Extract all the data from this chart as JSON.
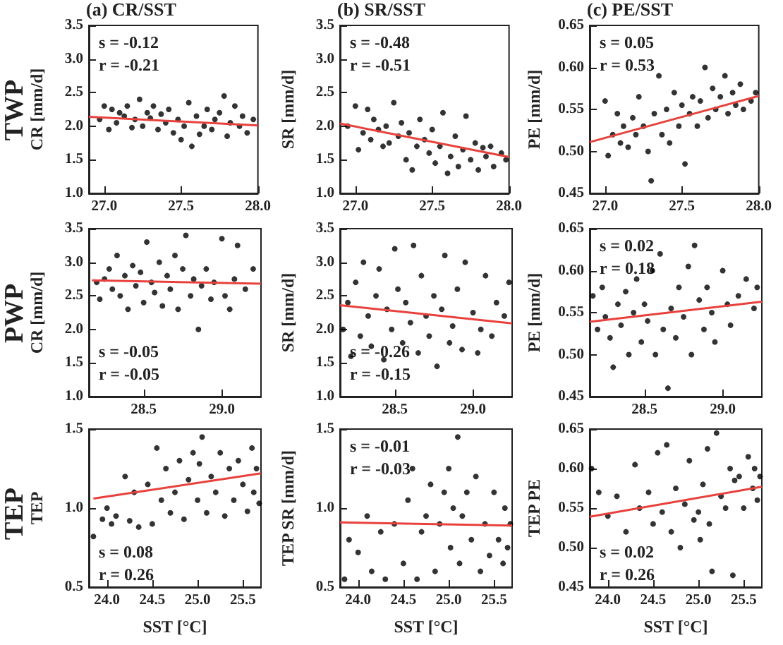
{
  "chart_data": [
    {
      "type": "scatter",
      "title": "(a) CR/SST",
      "ylabel": "CR [mm/d]",
      "annotations": [
        "TWP",
        "s = -0.12",
        "r = -0.21"
      ],
      "xlim": [
        26.9,
        28.0
      ],
      "xticks": [
        {
          "value": 27,
          "label": "27.0"
        },
        {
          "value": 27.5,
          "label": "27.5"
        },
        {
          "value": 28,
          "label": "28.0"
        }
      ],
      "ylim": [
        1.0,
        3.5
      ],
      "yticks": [
        {
          "value": 1,
          "label": "1.0"
        },
        {
          "value": 1.5,
          "label": "1.5"
        },
        {
          "value": 2,
          "label": "2.0"
        },
        {
          "value": 2.5,
          "label": "2.5"
        },
        {
          "value": 3,
          "label": "3.0"
        },
        {
          "value": 3.5,
          "label": "3.5"
        }
      ],
      "series": [
        {
          "type": "scatter",
          "marker": "circle",
          "color": "#000000",
          "x": [
            26.97,
            27.0,
            27.03,
            27.05,
            27.08,
            27.1,
            27.13,
            27.15,
            27.18,
            27.2,
            27.23,
            27.25,
            27.28,
            27.3,
            27.32,
            27.35,
            27.37,
            27.4,
            27.42,
            27.45,
            27.48,
            27.5,
            27.52,
            27.55,
            27.57,
            27.6,
            27.62,
            27.65,
            27.67,
            27.7,
            27.72,
            27.75,
            27.78,
            27.8,
            27.82,
            27.85,
            27.88,
            27.9,
            27.93,
            27.97
          ],
          "values": [
            2.1,
            2.3,
            1.95,
            2.25,
            2.05,
            2.2,
            2.15,
            2.3,
            1.98,
            2.1,
            2.4,
            2.0,
            2.2,
            2.12,
            2.3,
            1.95,
            2.18,
            2.05,
            2.25,
            1.9,
            2.1,
            1.8,
            2.0,
            2.35,
            1.7,
            2.15,
            1.88,
            2.0,
            2.25,
            1.95,
            2.1,
            2.2,
            2.45,
            1.85,
            2.05,
            2.3,
            2.0,
            2.15,
            1.9,
            2.1
          ]
        },
        {
          "type": "line",
          "marker": "none",
          "color": "#e8413c",
          "x": [
            26.9,
            28.0
          ],
          "values": [
            2.14,
            2.01
          ]
        }
      ]
    },
    {
      "type": "scatter",
      "title": "(b) SR/SST",
      "ylabel": "SR [mm/d]",
      "annotations": [
        "s = -0.48",
        "r = -0.51"
      ],
      "xlim": [
        26.9,
        28.0
      ],
      "xticks": [
        {
          "value": 27,
          "label": "27.0"
        },
        {
          "value": 27.5,
          "label": "27.5"
        },
        {
          "value": 28,
          "label": "28.0"
        }
      ],
      "ylim": [
        1.0,
        3.5
      ],
      "yticks": [
        {
          "value": 1,
          "label": "1.0"
        },
        {
          "value": 1.5,
          "label": "1.5"
        },
        {
          "value": 2,
          "label": "2.0"
        },
        {
          "value": 2.5,
          "label": "2.5"
        },
        {
          "value": 3,
          "label": "3.0"
        },
        {
          "value": 3.5,
          "label": "3.5"
        }
      ],
      "series": [
        {
          "type": "scatter",
          "marker": "circle",
          "color": "#000000",
          "x": [
            26.95,
            27.0,
            27.02,
            27.05,
            27.08,
            27.1,
            27.12,
            27.15,
            27.18,
            27.2,
            27.22,
            27.25,
            27.28,
            27.3,
            27.33,
            27.35,
            27.37,
            27.4,
            27.42,
            27.45,
            27.48,
            27.5,
            27.52,
            27.55,
            27.57,
            27.6,
            27.62,
            27.65,
            27.67,
            27.7,
            27.72,
            27.75,
            27.78,
            27.8,
            27.83,
            27.85,
            27.88,
            27.9,
            27.95,
            27.98
          ],
          "values": [
            2.0,
            2.3,
            1.65,
            1.9,
            2.25,
            1.8,
            2.1,
            1.95,
            1.7,
            2.0,
            1.75,
            2.35,
            1.85,
            2.05,
            1.5,
            1.9,
            1.35,
            1.7,
            2.1,
            1.8,
            1.6,
            1.95,
            1.45,
            1.7,
            2.2,
            1.3,
            1.55,
            1.85,
            1.4,
            1.65,
            2.15,
            1.5,
            1.75,
            1.35,
            1.68,
            1.55,
            1.7,
            1.4,
            1.6,
            1.5
          ]
        },
        {
          "type": "line",
          "marker": "none",
          "color": "#e8413c",
          "x": [
            26.9,
            28.0
          ],
          "values": [
            2.04,
            1.54
          ]
        }
      ]
    },
    {
      "type": "scatter",
      "title": "(c) PE/SST",
      "ylabel": "PE [mm/d]",
      "annotations": [
        "s = 0.05",
        "r = 0.53"
      ],
      "xlim": [
        26.9,
        28.0
      ],
      "xticks": [
        {
          "value": 27,
          "label": "27.0"
        },
        {
          "value": 27.5,
          "label": "27.5"
        },
        {
          "value": 28,
          "label": "28.0"
        }
      ],
      "ylim": [
        0.45,
        0.65
      ],
      "yticks": [
        {
          "value": 0.45,
          "label": "0.45"
        },
        {
          "value": 0.5,
          "label": "0.50"
        },
        {
          "value": 0.55,
          "label": "0.55"
        },
        {
          "value": 0.6,
          "label": "0.60"
        },
        {
          "value": 0.65,
          "label": "0.65"
        }
      ],
      "series": [
        {
          "type": "scatter",
          "marker": "circle",
          "color": "#000000",
          "x": [
            27.0,
            27.02,
            27.05,
            27.08,
            27.1,
            27.12,
            27.15,
            27.18,
            27.2,
            27.22,
            27.25,
            27.28,
            27.3,
            27.32,
            27.35,
            27.37,
            27.4,
            27.42,
            27.45,
            27.48,
            27.5,
            27.52,
            27.55,
            27.57,
            27.6,
            27.62,
            27.65,
            27.67,
            27.7,
            27.72,
            27.75,
            27.78,
            27.8,
            27.83,
            27.85,
            27.88,
            27.9,
            27.95,
            27.98
          ],
          "values": [
            0.56,
            0.495,
            0.52,
            0.545,
            0.51,
            0.53,
            0.505,
            0.54,
            0.52,
            0.565,
            0.53,
            0.5,
            0.465,
            0.545,
            0.59,
            0.52,
            0.55,
            0.51,
            0.57,
            0.53,
            0.555,
            0.485,
            0.545,
            0.565,
            0.53,
            0.56,
            0.6,
            0.54,
            0.575,
            0.55,
            0.565,
            0.59,
            0.545,
            0.57,
            0.555,
            0.58,
            0.55,
            0.56,
            0.57
          ]
        },
        {
          "type": "line",
          "marker": "none",
          "color": "#e8413c",
          "x": [
            26.9,
            28.0
          ],
          "values": [
            0.511,
            0.566
          ]
        }
      ]
    },
    {
      "type": "scatter",
      "ylabel": "CR [mm/d]",
      "annotations": [
        "PWP",
        "s = -0.05",
        "r = -0.05"
      ],
      "xlim": [
        28.15,
        29.25
      ],
      "xticks": [
        {
          "value": 28.5,
          "label": "28.5"
        },
        {
          "value": 29,
          "label": "29.0"
        }
      ],
      "ylim": [
        1.0,
        3.5
      ],
      "yticks": [
        {
          "value": 1,
          "label": "1.0"
        },
        {
          "value": 1.5,
          "label": "1.5"
        },
        {
          "value": 2,
          "label": "2.0"
        },
        {
          "value": 2.5,
          "label": "2.5"
        },
        {
          "value": 3,
          "label": "3.0"
        },
        {
          "value": 3.5,
          "label": "3.5"
        }
      ],
      "series": [
        {
          "type": "scatter",
          "marker": "circle",
          "color": "#000000",
          "x": [
            28.2,
            28.22,
            28.25,
            28.28,
            28.3,
            28.33,
            28.35,
            28.38,
            28.4,
            28.43,
            28.45,
            28.48,
            28.5,
            28.52,
            28.55,
            28.57,
            28.6,
            28.62,
            28.65,
            28.67,
            28.7,
            28.72,
            28.75,
            28.77,
            28.8,
            28.82,
            28.85,
            28.87,
            28.9,
            28.93,
            28.95,
            29.0,
            29.02,
            29.05,
            29.08,
            29.1,
            29.15,
            29.2
          ],
          "values": [
            2.7,
            2.45,
            2.75,
            2.9,
            2.6,
            3.1,
            2.5,
            2.8,
            2.3,
            2.95,
            2.65,
            2.85,
            2.4,
            3.3,
            2.7,
            2.55,
            3.0,
            2.35,
            2.8,
            2.6,
            3.1,
            2.3,
            2.9,
            3.4,
            2.5,
            2.75,
            2.0,
            2.65,
            2.9,
            2.45,
            2.7,
            3.35,
            2.5,
            2.3,
            2.75,
            3.25,
            2.6,
            2.9
          ]
        },
        {
          "type": "line",
          "marker": "none",
          "color": "#e8413c",
          "x": [
            28.17,
            29.25
          ],
          "values": [
            2.73,
            2.68
          ]
        }
      ]
    },
    {
      "type": "scatter",
      "ylabel": "SR [mm/d]",
      "annotations": [
        "s = -0.26",
        "r = -0.15"
      ],
      "xlim": [
        28.15,
        29.25
      ],
      "xticks": [
        {
          "value": 28.5,
          "label": "28.5"
        },
        {
          "value": 29,
          "label": "29.0"
        }
      ],
      "ylim": [
        1.0,
        3.5
      ],
      "yticks": [
        {
          "value": 1,
          "label": "1.0"
        },
        {
          "value": 1.5,
          "label": "1.5"
        },
        {
          "value": 2,
          "label": "2.0"
        },
        {
          "value": 2.5,
          "label": "2.5"
        },
        {
          "value": 3,
          "label": "3.0"
        },
        {
          "value": 3.5,
          "label": "3.5"
        }
      ],
      "series": [
        {
          "type": "scatter",
          "marker": "circle",
          "color": "#000000",
          "x": [
            28.17,
            28.2,
            28.22,
            28.25,
            28.28,
            28.3,
            28.33,
            28.35,
            28.38,
            28.4,
            28.43,
            28.45,
            28.48,
            28.5,
            28.52,
            28.55,
            28.57,
            28.6,
            28.62,
            28.65,
            28.67,
            28.7,
            28.72,
            28.75,
            28.77,
            28.8,
            28.82,
            28.85,
            28.87,
            28.9,
            28.93,
            28.95,
            29.0,
            29.03,
            29.05,
            29.08,
            29.12,
            29.15,
            29.2,
            29.23
          ],
          "values": [
            2.0,
            2.4,
            1.6,
            2.7,
            1.9,
            3.0,
            2.2,
            1.75,
            2.5,
            2.9,
            1.55,
            2.3,
            2.0,
            3.2,
            2.6,
            1.8,
            2.4,
            2.1,
            3.25,
            1.65,
            2.8,
            2.2,
            1.9,
            2.5,
            1.45,
            2.3,
            3.1,
            1.8,
            2.05,
            2.6,
            1.7,
            3.0,
            2.25,
            1.65,
            2.0,
            2.8,
            1.9,
            2.4,
            2.2,
            2.7
          ]
        },
        {
          "type": "line",
          "marker": "none",
          "color": "#e8413c",
          "x": [
            28.15,
            29.25
          ],
          "values": [
            2.36,
            2.09
          ]
        }
      ]
    },
    {
      "type": "scatter",
      "ylabel": "PE [mm/d]",
      "annotations": [
        "s = 0.02",
        "r = 0.18"
      ],
      "xlim": [
        28.15,
        29.25
      ],
      "xticks": [
        {
          "value": 28.5,
          "label": "28.5"
        },
        {
          "value": 29,
          "label": "29.0"
        }
      ],
      "ylim": [
        0.45,
        0.65
      ],
      "yticks": [
        {
          "value": 0.45,
          "label": "0.45"
        },
        {
          "value": 0.5,
          "label": "0.50"
        },
        {
          "value": 0.55,
          "label": "0.55"
        },
        {
          "value": 0.6,
          "label": "0.60"
        },
        {
          "value": 0.65,
          "label": "0.65"
        }
      ],
      "series": [
        {
          "type": "scatter",
          "marker": "circle",
          "color": "#000000",
          "x": [
            28.17,
            28.2,
            28.23,
            28.25,
            28.28,
            28.3,
            28.33,
            28.35,
            28.38,
            28.4,
            28.43,
            28.45,
            28.48,
            28.5,
            28.52,
            28.55,
            28.57,
            28.6,
            28.62,
            28.65,
            28.67,
            28.7,
            28.72,
            28.75,
            28.78,
            28.8,
            28.82,
            28.85,
            28.88,
            28.9,
            28.93,
            28.95,
            29.0,
            29.03,
            29.05,
            29.1,
            29.15,
            29.2,
            29.22
          ],
          "values": [
            0.57,
            0.53,
            0.58,
            0.545,
            0.52,
            0.485,
            0.56,
            0.535,
            0.575,
            0.5,
            0.55,
            0.59,
            0.515,
            0.56,
            0.54,
            0.6,
            0.5,
            0.62,
            0.53,
            0.46,
            0.555,
            0.52,
            0.58,
            0.545,
            0.605,
            0.5,
            0.63,
            0.565,
            0.53,
            0.58,
            0.55,
            0.515,
            0.6,
            0.56,
            0.535,
            0.57,
            0.59,
            0.555,
            0.58
          ]
        },
        {
          "type": "line",
          "marker": "none",
          "color": "#e8413c",
          "x": [
            28.15,
            29.25
          ],
          "values": [
            0.539,
            0.563
          ]
        }
      ]
    },
    {
      "type": "scatter",
      "ylabel": "TEP",
      "xlabel": "SST [°C]",
      "annotations": [
        "TEP",
        "s = 0.08",
        "r = 0.26"
      ],
      "xlim": [
        23.8,
        25.7
      ],
      "xticks": [
        {
          "value": 24,
          "label": "24.0"
        },
        {
          "value": 24.5,
          "label": "24.5"
        },
        {
          "value": 25,
          "label": "25.0"
        },
        {
          "value": 25.5,
          "label": "25.5"
        }
      ],
      "ylim": [
        0.5,
        1.5
      ],
      "yticks": [
        {
          "value": 0.5,
          "label": "0.5"
        },
        {
          "value": 1,
          "label": "1.0"
        },
        {
          "value": 1.5,
          "label": "1.5"
        }
      ],
      "series": [
        {
          "type": "scatter",
          "marker": "circle",
          "color": "#000000",
          "x": [
            23.85,
            23.95,
            24.0,
            24.05,
            24.1,
            24.2,
            24.25,
            24.3,
            24.35,
            24.45,
            24.5,
            24.55,
            24.6,
            24.65,
            24.7,
            24.75,
            24.8,
            24.85,
            24.9,
            24.95,
            25.0,
            25.02,
            25.05,
            25.1,
            25.15,
            25.2,
            25.25,
            25.3,
            25.35,
            25.4,
            25.45,
            25.5,
            25.55,
            25.6,
            25.62,
            25.65,
            25.68
          ],
          "values": [
            0.82,
            0.93,
            1.0,
            0.9,
            0.95,
            1.2,
            0.92,
            1.1,
            0.88,
            1.15,
            0.9,
            1.38,
            1.05,
            1.25,
            0.97,
            1.1,
            1.3,
            0.93,
            1.18,
            1.35,
            1.05,
            1.28,
            1.45,
            0.97,
            1.2,
            1.1,
            1.35,
            0.95,
            1.25,
            1.05,
            1.3,
            1.15,
            0.98,
            1.38,
            1.1,
            1.25,
            1.03
          ]
        },
        {
          "type": "line",
          "marker": "none",
          "color": "#e8413c",
          "x": [
            23.85,
            25.7
          ],
          "values": [
            1.06,
            1.22
          ]
        }
      ]
    },
    {
      "type": "scatter",
      "ylabel": "TEP SR [mm/d]",
      "xlabel": "SST [°C]",
      "annotations": [
        "s = -0.01",
        "r = -0.03"
      ],
      "xlim": [
        23.8,
        25.7
      ],
      "xticks": [
        {
          "value": 24,
          "label": "24.0"
        },
        {
          "value": 24.5,
          "label": "24.5"
        },
        {
          "value": 25,
          "label": "25.0"
        },
        {
          "value": 25.5,
          "label": "25.5"
        }
      ],
      "ylim": [
        0.5,
        1.5
      ],
      "yticks": [
        {
          "value": 0.5,
          "label": "0.5"
        },
        {
          "value": 1,
          "label": "1.0"
        },
        {
          "value": 1.5,
          "label": "1.5"
        }
      ],
      "series": [
        {
          "type": "scatter",
          "marker": "circle",
          "color": "#000000",
          "x": [
            23.85,
            23.9,
            24.0,
            24.1,
            24.15,
            24.25,
            24.3,
            24.4,
            24.5,
            24.55,
            24.6,
            24.65,
            24.7,
            24.75,
            24.8,
            24.85,
            24.9,
            24.95,
            25.0,
            25.02,
            25.05,
            25.1,
            25.12,
            25.15,
            25.2,
            25.25,
            25.3,
            25.35,
            25.4,
            25.45,
            25.5,
            25.55,
            25.6,
            25.62,
            25.65,
            25.68
          ],
          "values": [
            0.55,
            0.8,
            0.72,
            0.95,
            0.6,
            0.85,
            0.55,
            0.9,
            0.65,
            1.05,
            1.25,
            0.55,
            0.85,
            0.95,
            1.15,
            0.6,
            0.9,
            1.1,
            1.25,
            0.75,
            1.0,
            1.45,
            0.65,
            0.95,
            1.1,
            0.8,
            1.2,
            0.6,
            0.9,
            0.7,
            1.1,
            0.8,
            0.65,
            1.0,
            0.75,
            0.9
          ]
        },
        {
          "type": "line",
          "marker": "none",
          "color": "#e8413c",
          "x": [
            23.8,
            25.7
          ],
          "values": [
            0.91,
            0.89
          ]
        }
      ]
    },
    {
      "type": "scatter",
      "ylabel": "TEP PE",
      "xlabel": "SST [°C]",
      "annotations": [
        "s = 0.02",
        "r = 0.26"
      ],
      "xlim": [
        23.8,
        25.7
      ],
      "xticks": [
        {
          "value": 24,
          "label": "24.0"
        },
        {
          "value": 24.5,
          "label": "24.5"
        },
        {
          "value": 25,
          "label": "25.0"
        },
        {
          "value": 25.5,
          "label": "25.5"
        }
      ],
      "ylim": [
        0.45,
        0.65
      ],
      "yticks": [
        {
          "value": 0.45,
          "label": "0.45"
        },
        {
          "value": 0.5,
          "label": "0.50"
        },
        {
          "value": 0.55,
          "label": "0.55"
        },
        {
          "value": 0.6,
          "label": "0.60"
        },
        {
          "value": 0.65,
          "label": "0.65"
        }
      ],
      "series": [
        {
          "type": "scatter",
          "marker": "circle",
          "color": "#000000",
          "x": [
            23.82,
            23.9,
            24.0,
            24.1,
            24.2,
            24.3,
            24.35,
            24.45,
            24.5,
            24.55,
            24.6,
            24.65,
            24.7,
            24.75,
            24.8,
            24.85,
            24.9,
            24.95,
            25.0,
            25.02,
            25.05,
            25.1,
            25.12,
            25.15,
            25.2,
            25.25,
            25.3,
            25.35,
            25.38,
            25.4,
            25.45,
            25.5,
            25.55,
            25.6,
            25.62,
            25.65,
            25.68
          ],
          "values": [
            0.6,
            0.57,
            0.54,
            0.565,
            0.52,
            0.605,
            0.55,
            0.57,
            0.53,
            0.62,
            0.545,
            0.63,
            0.52,
            0.575,
            0.5,
            0.555,
            0.61,
            0.535,
            0.545,
            0.51,
            0.58,
            0.625,
            0.53,
            0.47,
            0.645,
            0.565,
            0.55,
            0.6,
            0.465,
            0.585,
            0.59,
            0.55,
            0.615,
            0.575,
            0.6,
            0.56,
            0.59
          ]
        },
        {
          "type": "line",
          "marker": "none",
          "color": "#e8413c",
          "x": [
            23.8,
            25.7
          ],
          "values": [
            0.539,
            0.577
          ]
        }
      ]
    }
  ]
}
